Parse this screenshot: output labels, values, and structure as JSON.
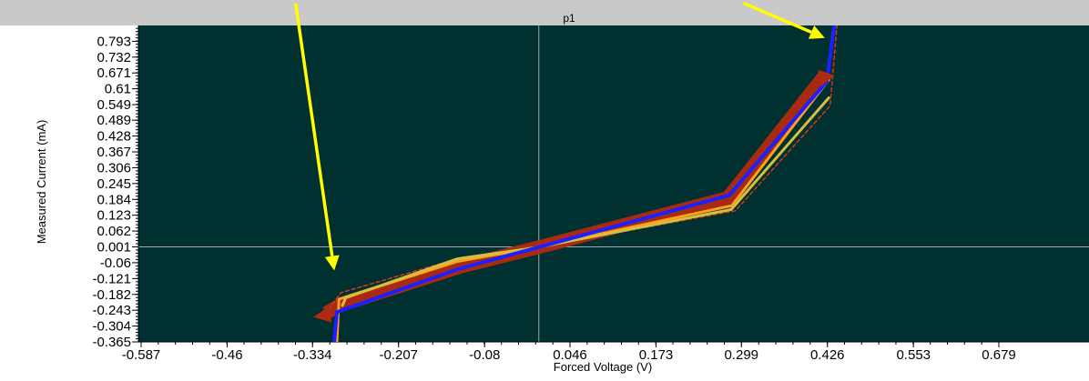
{
  "chart_data": {
    "type": "line",
    "title": "p1",
    "xlabel": "Forced Voltage (V)",
    "ylabel": "Measured Current (mA)",
    "xlim": [
      -0.587,
      0.679
    ],
    "ylim": [
      -0.365,
      0.854
    ],
    "x_ticks": [
      "-0.587",
      "-0.46",
      "-0.334",
      "-0.207",
      "-0.08",
      "0.046",
      "0.173",
      "0.299",
      "0.426",
      "0.553",
      "0.679"
    ],
    "y_ticks": [
      "0.793",
      "0.732",
      "0.671",
      "0.61",
      "0.549",
      "0.489",
      "0.428",
      "0.367",
      "0.306",
      "0.245",
      "0.184",
      "0.123",
      "0.062",
      "0.001",
      "-0.06",
      "-0.121",
      "-0.182",
      "-0.243",
      "-0.304",
      "-0.365"
    ],
    "background_color": "#00302f",
    "grid": false,
    "crosshair": {
      "x": 0.0,
      "y": 0.001
    },
    "series": [
      {
        "color": "#b02a10",
        "style": "band",
        "x": [
          -0.314,
          -0.295,
          -0.115,
          0.0,
          0.279,
          0.42
        ],
        "y": [
          -0.255,
          -0.225,
          -0.075,
          0.0,
          0.19,
          0.655
        ]
      },
      {
        "color": "#d23a18",
        "style": "dashed",
        "x": [
          -0.31,
          -0.292,
          -0.12,
          0.0,
          0.29,
          0.43,
          0.44
        ],
        "y": [
          -0.24,
          -0.175,
          -0.045,
          0.0,
          0.14,
          0.545,
          0.854
        ]
      },
      {
        "color": "#ffa020",
        "style": "solid",
        "x": [
          -0.298,
          -0.295,
          -0.12,
          0.0,
          0.285,
          0.428
        ],
        "y": [
          -0.365,
          -0.2,
          -0.055,
          0.0,
          0.16,
          0.645
        ]
      },
      {
        "color": "#d4c040",
        "style": "solid",
        "x": [
          -0.29,
          -0.285,
          -0.12,
          0.0,
          0.284,
          0.428
        ],
        "y": [
          -0.225,
          -0.195,
          -0.045,
          0.0,
          0.145,
          0.575
        ]
      },
      {
        "color": "#1a20ff",
        "style": "solid",
        "x": [
          -0.302,
          -0.298,
          -0.12,
          0.0,
          0.281,
          0.425,
          0.436
        ],
        "y": [
          -0.365,
          -0.25,
          -0.085,
          0.0,
          0.2,
          0.638,
          0.854
        ]
      }
    ],
    "annotations": [
      {
        "type": "arrow",
        "color": "#ffff00",
        "from": [
          -0.359,
          0.94
        ],
        "to": [
          -0.302,
          -0.09
        ]
      },
      {
        "type": "arrow",
        "color": "#ffff00",
        "from": [
          0.302,
          0.94
        ],
        "to": [
          0.422,
          0.806
        ]
      }
    ]
  }
}
